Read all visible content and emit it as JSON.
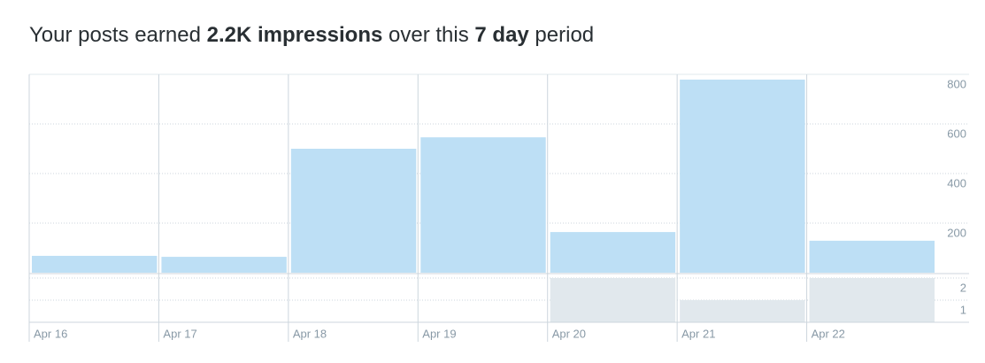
{
  "chart_data": [
    {
      "type": "bar",
      "title_parts": [
        "Your posts earned ",
        "2.2K impressions",
        " over this ",
        "7 day",
        " period"
      ],
      "categories": [
        "Apr 16",
        "Apr 17",
        "Apr 18",
        "Apr 19",
        "Apr 20",
        "Apr 21",
        "Apr 22"
      ],
      "values": [
        68,
        64,
        500,
        546,
        164,
        779,
        129
      ],
      "color": "#bddff5",
      "ylim": [
        0,
        800
      ],
      "yticks": [
        200,
        400,
        600,
        800
      ],
      "grid": true
    },
    {
      "type": "bar",
      "values": [
        0,
        0,
        0,
        0,
        2,
        1,
        2
      ],
      "color": "#e1e8ed",
      "ylim": [
        0,
        2.2
      ],
      "yticks": [
        1,
        2
      ],
      "grid": true
    }
  ]
}
